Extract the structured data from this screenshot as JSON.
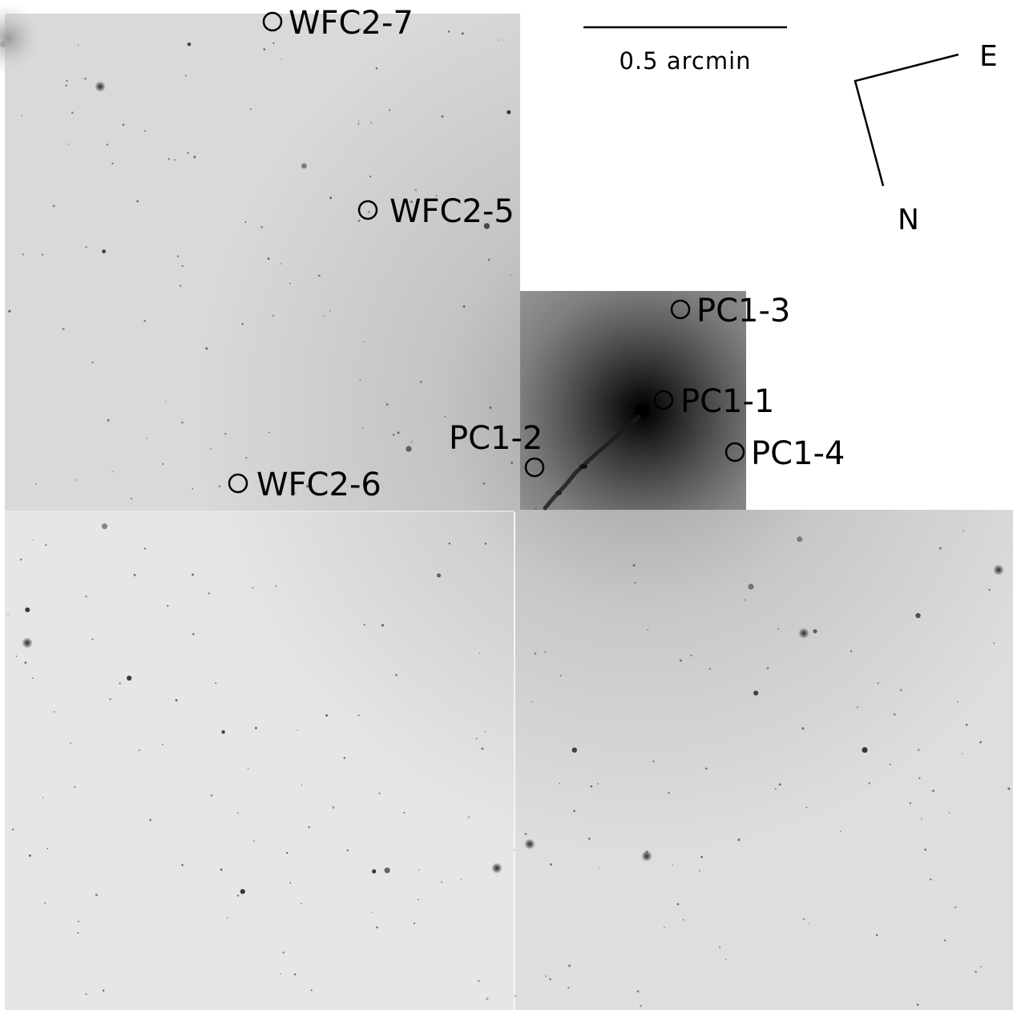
{
  "colors": {
    "background": "#ffffff",
    "field": "#dedede",
    "field_light": "#e9e9e9",
    "marker": "#000000"
  },
  "scale_bar": {
    "label": "0.5 arcmin"
  },
  "compass": {
    "east_label": "E",
    "north_label": "N"
  },
  "targets": [
    {
      "id": "wfc2-7",
      "label": "WFC2-7"
    },
    {
      "id": "wfc2-5",
      "label": "WFC2-5"
    },
    {
      "id": "wfc2-6",
      "label": "WFC2-6"
    },
    {
      "id": "pc1-3",
      "label": "PC1-3"
    },
    {
      "id": "pc1-1",
      "label": "PC1-1"
    },
    {
      "id": "pc1-2",
      "label": "PC1-2"
    },
    {
      "id": "pc1-4",
      "label": "PC1-4"
    }
  ]
}
